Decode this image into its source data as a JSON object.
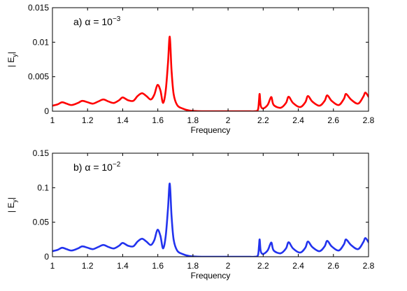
{
  "chart_data": [
    {
      "type": "line",
      "panel_label": "a) α = 10",
      "panel_exponent": "−3",
      "xlabel": "Frequency",
      "ylabel_main": "| E",
      "ylabel_sub": "y",
      "ylabel_end": "|",
      "xlim": [
        1,
        2.8
      ],
      "ylim": [
        0,
        0.015
      ],
      "xticks": [
        1,
        1.2,
        1.4,
        1.6,
        1.8,
        2,
        2.2,
        2.4,
        2.6,
        2.8
      ],
      "xtick_labels": [
        "1",
        "1.2",
        "1.4",
        "1.6",
        "1.8",
        "2",
        "2.2",
        "2.4",
        "2.6",
        "2.8"
      ],
      "yticks": [
        0,
        0.005,
        0.01,
        0.015
      ],
      "ytick_labels": [
        "0",
        "0.005",
        "0.01",
        "0.015"
      ],
      "grid": false,
      "color": "#ff0000",
      "series": [
        {
          "x": [
            1.0,
            1.03,
            1.055,
            1.08,
            1.11,
            1.145,
            1.17,
            1.2,
            1.23,
            1.26,
            1.29,
            1.32,
            1.35,
            1.38,
            1.4,
            1.43,
            1.46,
            1.485,
            1.51,
            1.535,
            1.56,
            1.58,
            1.598,
            1.615,
            1.63,
            1.645,
            1.658,
            1.668,
            1.678,
            1.69,
            1.71,
            1.74,
            1.78,
            1.85,
            2.0,
            2.1,
            2.15,
            2.17,
            2.176,
            2.18,
            2.186,
            2.2,
            2.225,
            2.24,
            2.248,
            2.26,
            2.3,
            2.33,
            2.345,
            2.37,
            2.41,
            2.44,
            2.455,
            2.48,
            2.52,
            2.55,
            2.565,
            2.59,
            2.63,
            2.66,
            2.672,
            2.7,
            2.74,
            2.77,
            2.782,
            2.8
          ],
          "y": [
            0.0008,
            0.001,
            0.0013,
            0.0011,
            0.0009,
            0.0012,
            0.0015,
            0.0013,
            0.0011,
            0.0014,
            0.0017,
            0.0014,
            0.0012,
            0.0016,
            0.002,
            0.0016,
            0.0015,
            0.0022,
            0.0026,
            0.0022,
            0.0017,
            0.0024,
            0.0038,
            0.003,
            0.0012,
            0.003,
            0.007,
            0.0108,
            0.006,
            0.0025,
            0.0009,
            0.0004,
            0.0001,
            0.0,
            0.0,
            0.0,
            0.0,
            0.0002,
            0.0015,
            0.0025,
            0.0008,
            0.0004,
            0.0009,
            0.0018,
            0.002,
            0.0009,
            0.0005,
            0.0012,
            0.0021,
            0.0012,
            0.0006,
            0.0013,
            0.0022,
            0.0014,
            0.0008,
            0.0015,
            0.0023,
            0.0015,
            0.0009,
            0.0018,
            0.0025,
            0.0017,
            0.0011,
            0.0021,
            0.0027,
            0.0021
          ]
        }
      ]
    },
    {
      "type": "line",
      "panel_label": "b) α = 10",
      "panel_exponent": "−2",
      "xlabel": "Frequency",
      "ylabel_main": "| E",
      "ylabel_sub": "y",
      "ylabel_end": "|",
      "xlim": [
        1,
        2.8
      ],
      "ylim": [
        0,
        0.15
      ],
      "xticks": [
        1,
        1.2,
        1.4,
        1.6,
        1.8,
        2,
        2.2,
        2.4,
        2.6,
        2.8
      ],
      "xtick_labels": [
        "1",
        "1.2",
        "1.4",
        "1.6",
        "1.8",
        "2",
        "2.2",
        "2.4",
        "2.6",
        "2.8"
      ],
      "yticks": [
        0,
        0.05,
        0.1,
        0.15
      ],
      "ytick_labels": [
        "0",
        "0.05",
        "0.1",
        "0.15"
      ],
      "grid": false,
      "color": "#2233ee",
      "series": [
        {
          "x": [
            1.0,
            1.03,
            1.055,
            1.08,
            1.11,
            1.145,
            1.17,
            1.2,
            1.23,
            1.26,
            1.29,
            1.32,
            1.35,
            1.38,
            1.4,
            1.43,
            1.46,
            1.485,
            1.51,
            1.535,
            1.56,
            1.58,
            1.598,
            1.615,
            1.63,
            1.645,
            1.658,
            1.668,
            1.678,
            1.69,
            1.71,
            1.74,
            1.78,
            1.85,
            2.0,
            2.1,
            2.15,
            2.17,
            2.176,
            2.18,
            2.186,
            2.2,
            2.225,
            2.24,
            2.248,
            2.26,
            2.3,
            2.33,
            2.345,
            2.37,
            2.41,
            2.44,
            2.455,
            2.48,
            2.52,
            2.55,
            2.565,
            2.59,
            2.63,
            2.66,
            2.672,
            2.7,
            2.74,
            2.77,
            2.782,
            2.8
          ],
          "y": [
            0.008,
            0.01,
            0.013,
            0.011,
            0.009,
            0.012,
            0.015,
            0.013,
            0.011,
            0.014,
            0.017,
            0.014,
            0.012,
            0.016,
            0.02,
            0.016,
            0.015,
            0.022,
            0.026,
            0.022,
            0.017,
            0.024,
            0.039,
            0.03,
            0.012,
            0.03,
            0.07,
            0.106,
            0.06,
            0.025,
            0.009,
            0.004,
            0.001,
            0.0,
            0.0,
            0.0,
            0.0,
            0.002,
            0.015,
            0.025,
            0.008,
            0.004,
            0.009,
            0.018,
            0.02,
            0.009,
            0.005,
            0.012,
            0.021,
            0.012,
            0.006,
            0.013,
            0.022,
            0.014,
            0.008,
            0.015,
            0.023,
            0.015,
            0.009,
            0.018,
            0.025,
            0.017,
            0.011,
            0.021,
            0.027,
            0.021
          ]
        }
      ]
    }
  ]
}
